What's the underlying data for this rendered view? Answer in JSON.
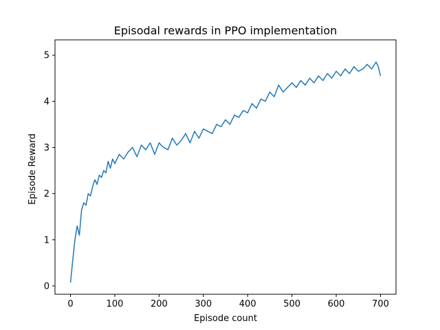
{
  "chart_data": {
    "type": "line",
    "title": "Episodal rewards in PPO implementation",
    "xlabel": "Episode count",
    "ylabel": "Episode Reward",
    "xlim": [
      -35,
      735
    ],
    "ylim": [
      -0.18,
      5.33
    ],
    "xticks": [
      0,
      100,
      200,
      300,
      400,
      500,
      600,
      700
    ],
    "yticks": [
      0,
      1,
      2,
      3,
      4,
      5
    ],
    "grid": false,
    "legend": "none",
    "series": [
      {
        "color": "#1f77b4",
        "x": [
          0,
          5,
          10,
          15,
          20,
          25,
          30,
          35,
          40,
          45,
          50,
          55,
          60,
          65,
          70,
          75,
          80,
          85,
          90,
          95,
          100,
          110,
          120,
          130,
          140,
          150,
          160,
          170,
          180,
          190,
          200,
          210,
          220,
          230,
          240,
          250,
          260,
          270,
          280,
          290,
          300,
          310,
          320,
          330,
          340,
          350,
          360,
          370,
          380,
          390,
          400,
          410,
          420,
          430,
          440,
          450,
          460,
          470,
          480,
          490,
          500,
          510,
          520,
          530,
          540,
          550,
          560,
          570,
          580,
          590,
          600,
          610,
          620,
          630,
          640,
          650,
          660,
          670,
          680,
          690,
          695,
          700
        ],
        "y": [
          0.07,
          0.55,
          1.0,
          1.3,
          1.1,
          1.65,
          1.8,
          1.75,
          2.0,
          1.95,
          2.15,
          2.3,
          2.2,
          2.4,
          2.35,
          2.5,
          2.45,
          2.7,
          2.55,
          2.75,
          2.65,
          2.85,
          2.75,
          2.9,
          3.0,
          2.8,
          3.05,
          2.95,
          3.1,
          2.85,
          3.1,
          3.0,
          2.95,
          3.2,
          3.05,
          3.15,
          3.3,
          3.1,
          3.35,
          3.2,
          3.4,
          3.35,
          3.3,
          3.5,
          3.45,
          3.6,
          3.5,
          3.7,
          3.65,
          3.8,
          3.75,
          3.95,
          3.85,
          4.05,
          4.0,
          4.2,
          4.1,
          4.35,
          4.2,
          4.3,
          4.4,
          4.3,
          4.45,
          4.35,
          4.5,
          4.4,
          4.55,
          4.45,
          4.6,
          4.5,
          4.65,
          4.55,
          4.7,
          4.6,
          4.75,
          4.65,
          4.7,
          4.8,
          4.7,
          4.85,
          4.75,
          4.55
        ]
      }
    ]
  }
}
